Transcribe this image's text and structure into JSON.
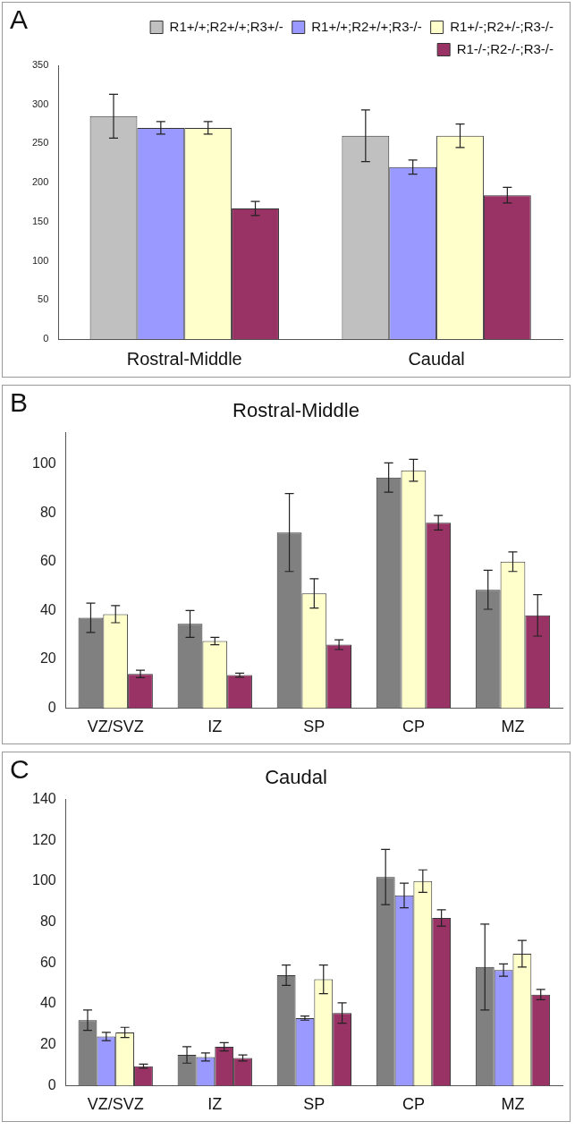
{
  "chart_data": [
    {
      "type": "bar",
      "annotations": [
        "A"
      ],
      "categories": [
        "Rostral-Middle",
        "Caudal"
      ],
      "legend": "top right",
      "ylim": [
        0,
        350
      ],
      "yticks": [
        0,
        50,
        100,
        150,
        200,
        250,
        300,
        350
      ],
      "series": [
        {
          "name": "R1+/+;R2+/+;R3+/-",
          "color": "#c0c0c0",
          "values": [
            285,
            260
          ],
          "errors": [
            28,
            33
          ]
        },
        {
          "name": "R1+/+;R2+/+;R3-/-",
          "color": "#9999ff",
          "values": [
            270,
            220
          ],
          "errors": [
            8,
            9
          ]
        },
        {
          "name": "R1+/-;R2+/-;R3-/-",
          "color": "#ffffcc",
          "values": [
            270,
            260
          ],
          "errors": [
            8,
            15
          ]
        },
        {
          "name": "R1-/-;R2-/-;R3-/-",
          "color": "#993366",
          "values": [
            167,
            184
          ],
          "errors": [
            9,
            10
          ]
        }
      ]
    },
    {
      "type": "bar",
      "title": "Rostral-Middle",
      "annotations": [
        "B"
      ],
      "categories": [
        "VZ/SVZ",
        "IZ",
        "SP",
        "CP",
        "MZ"
      ],
      "ylim": [
        0,
        113
      ],
      "yticks": [
        0,
        20,
        40,
        60,
        80,
        100
      ],
      "series": [
        {
          "color": "#808080",
          "values": [
            37,
            34.5,
            72,
            94.5,
            48.5
          ],
          "errors": [
            6,
            5.5,
            16,
            6,
            8
          ]
        },
        {
          "color": "#ffffcc",
          "values": [
            38.5,
            27.5,
            47,
            97.5,
            60
          ],
          "errors": [
            3.5,
            1.5,
            6,
            4.5,
            4
          ]
        },
        {
          "color": "#993366",
          "values": [
            14,
            13.5,
            26,
            76,
            38
          ],
          "errors": [
            1.5,
            0.8,
            2,
            3,
            8.5
          ]
        }
      ]
    },
    {
      "type": "bar",
      "title": "Caudal",
      "annotations": [
        "C"
      ],
      "categories": [
        "VZ/SVZ",
        "IZ",
        "SP",
        "CP",
        "MZ"
      ],
      "ylim": [
        0,
        140
      ],
      "yticks": [
        0,
        20,
        40,
        60,
        80,
        100,
        120,
        140
      ],
      "series": [
        {
          "color": "#808080",
          "values": [
            32,
            15,
            54,
            102,
            58
          ],
          "errors": [
            5,
            4,
            5,
            13.5,
            21
          ]
        },
        {
          "color": "#9999ff",
          "values": [
            24,
            14,
            33,
            93,
            56.5
          ],
          "errors": [
            2,
            2,
            1,
            6,
            3
          ]
        },
        {
          "color": "#ffffcc",
          "colors": [
            null,
            "#993366",
            null,
            null,
            null
          ],
          "values": [
            26,
            19,
            52,
            100,
            64.5
          ],
          "errors": [
            2.5,
            2,
            7,
            5.5,
            6.5
          ]
        },
        {
          "color": "#993366",
          "values": [
            9.5,
            13.5,
            35.5,
            82,
            44.5
          ],
          "errors": [
            1,
            1.5,
            5,
            4,
            2.5
          ]
        }
      ]
    }
  ]
}
